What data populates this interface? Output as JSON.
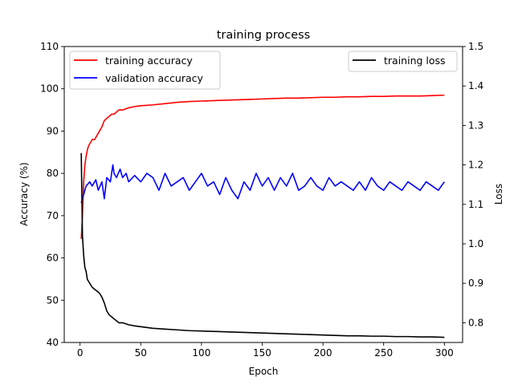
{
  "chart_data": {
    "type": "line",
    "title": "training process",
    "xlabel": "Epoch",
    "ylabel_left": "Accuracy (%)",
    "ylabel_right": "Loss",
    "xlim": [
      -13,
      315
    ],
    "ylim_left": [
      40,
      110
    ],
    "ylim_right": [
      0.75,
      1.5
    ],
    "xticks": [
      0,
      50,
      100,
      150,
      200,
      250,
      300
    ],
    "yticks_left": [
      40,
      50,
      60,
      70,
      80,
      90,
      100,
      110
    ],
    "yticks_right": [
      0.8,
      0.9,
      1.0,
      1.1,
      1.2,
      1.3,
      1.4,
      1.5
    ],
    "xtick_labels": [
      "0",
      "50",
      "100",
      "150",
      "200",
      "250",
      "300"
    ],
    "ytick_labels_left": [
      "40",
      "50",
      "60",
      "70",
      "80",
      "90",
      "100",
      "110"
    ],
    "ytick_labels_right": [
      "0.8",
      "0.9",
      "1.0",
      "1.1",
      "1.2",
      "1.3",
      "1.4",
      "1.5"
    ],
    "grid": false,
    "legends": [
      {
        "placement": "upper-left",
        "entries": [
          "training accuracy",
          "validation accuracy"
        ]
      },
      {
        "placement": "upper-right",
        "entries": [
          "training loss"
        ]
      }
    ],
    "series": [
      {
        "name": "training accuracy",
        "axis": "left",
        "color": "#ff0000",
        "x": [
          1,
          2,
          3,
          4,
          5,
          6,
          7,
          8,
          9,
          10,
          12,
          14,
          16,
          18,
          20,
          22,
          24,
          26,
          28,
          30,
          32,
          35,
          40,
          45,
          50,
          55,
          60,
          70,
          80,
          90,
          100,
          110,
          120,
          130,
          140,
          150,
          160,
          170,
          180,
          190,
          200,
          210,
          220,
          230,
          240,
          250,
          260,
          270,
          280,
          290,
          300
        ],
        "y": [
          64.5,
          70,
          78,
          82,
          84,
          85.5,
          86.5,
          87,
          87.5,
          88,
          88,
          89,
          90,
          91,
          92.5,
          93,
          93.5,
          94,
          94,
          94.5,
          95,
          95,
          95.5,
          95.8,
          96,
          96.1,
          96.2,
          96.5,
          96.8,
          97,
          97.1,
          97.2,
          97.3,
          97.4,
          97.5,
          97.6,
          97.7,
          97.8,
          97.8,
          97.9,
          98,
          98,
          98.1,
          98.1,
          98.2,
          98.2,
          98.3,
          98.3,
          98.3,
          98.4,
          98.5
        ]
      },
      {
        "name": "validation accuracy",
        "axis": "left",
        "color": "#0000ff",
        "x": [
          1,
          3,
          5,
          8,
          10,
          13,
          15,
          18,
          20,
          22,
          25,
          27,
          28,
          30,
          33,
          35,
          38,
          40,
          45,
          50,
          55,
          60,
          65,
          70,
          75,
          80,
          85,
          90,
          95,
          100,
          105,
          110,
          115,
          120,
          125,
          130,
          135,
          140,
          145,
          150,
          155,
          160,
          165,
          170,
          175,
          180,
          185,
          190,
          195,
          200,
          205,
          210,
          215,
          220,
          225,
          230,
          235,
          240,
          245,
          250,
          255,
          260,
          265,
          270,
          275,
          280,
          285,
          290,
          295,
          300
        ],
        "y": [
          73,
          75,
          77,
          78,
          77,
          78.5,
          76,
          78,
          74,
          79,
          78,
          82,
          80,
          79,
          81,
          79,
          80,
          78,
          79.5,
          78,
          80,
          79,
          76,
          80,
          77,
          78,
          79,
          76,
          78,
          80,
          77,
          78,
          75,
          79,
          76,
          74,
          78,
          76,
          80,
          77,
          79,
          76,
          79,
          77,
          80,
          76,
          77,
          79,
          77,
          76,
          79,
          77,
          78,
          77,
          76,
          78,
          76,
          79,
          77,
          76,
          78,
          77,
          76,
          78,
          77,
          76,
          78,
          77,
          76,
          78
        ]
      },
      {
        "name": "training loss",
        "axis": "right",
        "color": "#000000",
        "x": [
          1,
          2,
          3,
          4,
          5,
          6,
          7,
          8,
          10,
          12,
          14,
          16,
          18,
          20,
          22,
          24,
          26,
          28,
          30,
          32,
          35,
          40,
          45,
          50,
          55,
          60,
          70,
          80,
          90,
          100,
          110,
          120,
          130,
          140,
          150,
          160,
          170,
          180,
          190,
          200,
          210,
          220,
          230,
          240,
          250,
          260,
          270,
          280,
          290,
          300
        ],
        "y": [
          1.23,
          1.02,
          0.97,
          0.94,
          0.93,
          0.91,
          0.905,
          0.9,
          0.89,
          0.885,
          0.88,
          0.875,
          0.865,
          0.85,
          0.83,
          0.82,
          0.815,
          0.81,
          0.805,
          0.8,
          0.8,
          0.795,
          0.792,
          0.79,
          0.788,
          0.786,
          0.784,
          0.782,
          0.78,
          0.779,
          0.778,
          0.777,
          0.776,
          0.775,
          0.774,
          0.773,
          0.772,
          0.771,
          0.77,
          0.769,
          0.768,
          0.767,
          0.767,
          0.766,
          0.766,
          0.765,
          0.765,
          0.764,
          0.764,
          0.763
        ]
      }
    ]
  }
}
